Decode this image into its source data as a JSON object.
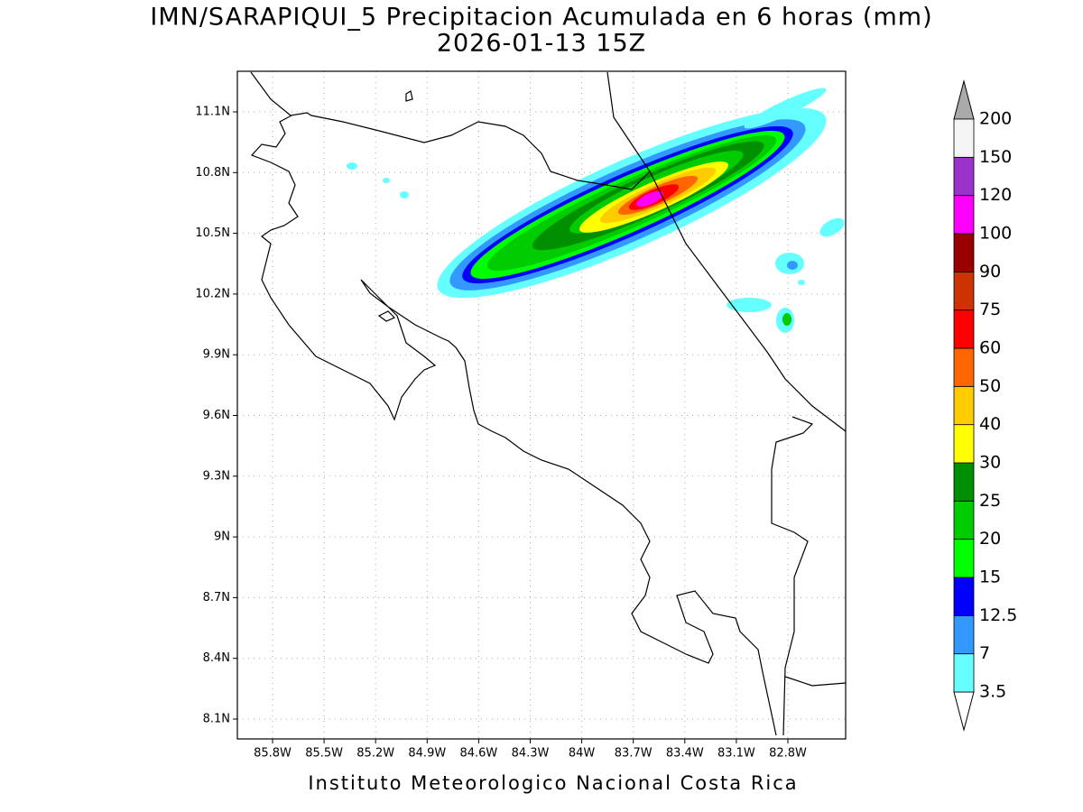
{
  "title": "IMN/SARAPIQUI_5 Precipitacion Acumulada en 6 horas (mm)",
  "subtitle": "2026-01-13 15Z",
  "map": {
    "lon_ticks": [
      "85.8W",
      "85.5W",
      "85.2W",
      "84.9W",
      "84.6W",
      "84.3W",
      "84W",
      "83.7W",
      "83.4W",
      "83.1W",
      "82.8W"
    ],
    "lat_ticks": [
      "11.1N",
      "10.8N",
      "10.5N",
      "10.2N",
      "9.9N",
      "9.6N",
      "9.3N",
      "9N",
      "8.7N",
      "8.4N",
      "8.1N"
    ]
  },
  "colorbar": {
    "levels": [
      3.5,
      7,
      12.5,
      15,
      20,
      25,
      30,
      40,
      50,
      60,
      75,
      90,
      100,
      120,
      150,
      200
    ],
    "colors": [
      "#66ffff",
      "#3399ff",
      "#0000ff",
      "#00ff00",
      "#00cc00",
      "#008f00",
      "#ffff00",
      "#ffcc00",
      "#ff6600",
      "#ff0000",
      "#cc3300",
      "#990000",
      "#ff00ff",
      "#9933cc",
      "#f5f5f5"
    ]
  },
  "footer": "Instituto Meteorologico Nacional Costa Rica"
}
